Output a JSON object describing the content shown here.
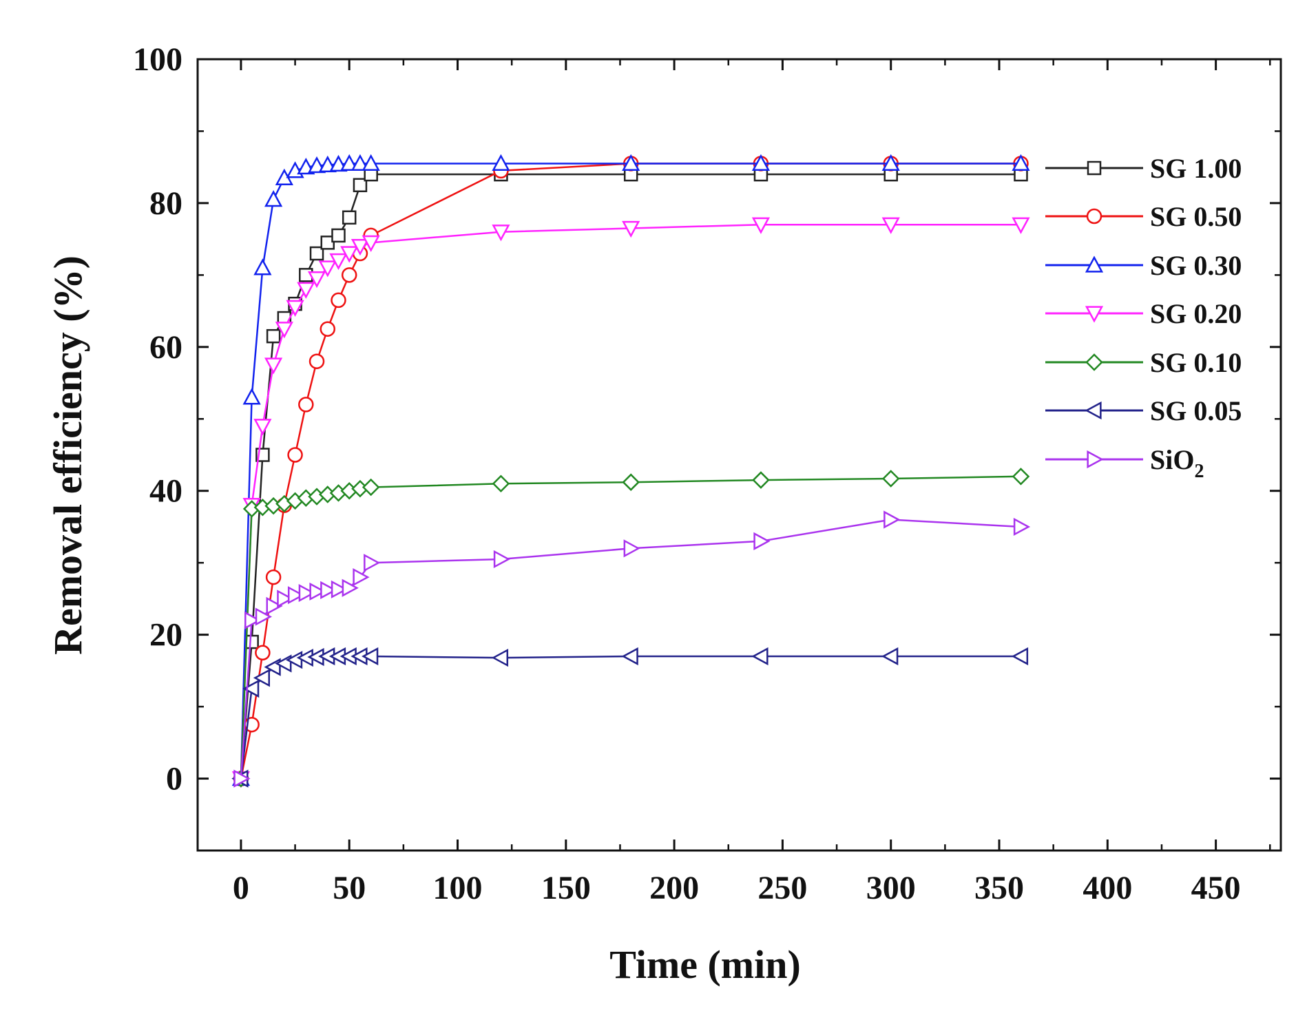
{
  "chart_data": {
    "type": "line",
    "title": "",
    "xlabel": "Time (min)",
    "ylabel": "Removal efficiency (%)",
    "xlim": [
      -20,
      480
    ],
    "ylim": [
      -10,
      100
    ],
    "xticks": [
      0,
      50,
      100,
      150,
      200,
      250,
      300,
      350,
      400,
      450
    ],
    "yticks": [
      0,
      20,
      40,
      60,
      80,
      100
    ],
    "legend_position": "top-right",
    "series": [
      {
        "name": "SG 1.00",
        "marker": "square",
        "color": "#222222",
        "x": [
          0,
          5,
          10,
          15,
          20,
          25,
          30,
          35,
          40,
          45,
          50,
          55,
          60,
          120,
          180,
          240,
          300,
          360
        ],
        "y": [
          0,
          19,
          45,
          61.5,
          64,
          66,
          70,
          73,
          74.5,
          75.5,
          78,
          82.5,
          84,
          84,
          84,
          84,
          84,
          84
        ]
      },
      {
        "name": "SG 0.50",
        "marker": "circle",
        "color": "#ee1111",
        "x": [
          0,
          5,
          10,
          15,
          20,
          25,
          30,
          35,
          40,
          45,
          50,
          55,
          60,
          120,
          180,
          240,
          300,
          360
        ],
        "y": [
          0,
          7.5,
          17.5,
          28,
          38,
          45,
          52,
          58,
          62.5,
          66.5,
          70,
          73,
          75.5,
          84.5,
          85.5,
          85.5,
          85.5,
          85.5
        ]
      },
      {
        "name": "SG 0.30",
        "marker": "triangle-up",
        "color": "#1122ee",
        "x": [
          0,
          5,
          10,
          15,
          20,
          25,
          30,
          35,
          40,
          45,
          50,
          55,
          60,
          120,
          180,
          240,
          300,
          360
        ],
        "y": [
          0,
          53,
          71,
          80.5,
          83.5,
          84.5,
          85,
          85.2,
          85.3,
          85.4,
          85.5,
          85.5,
          85.5,
          85.5,
          85.5,
          85.5,
          85.5,
          85.5
        ]
      },
      {
        "name": "SG 0.20",
        "marker": "triangle-down",
        "color": "#ff22ff",
        "x": [
          0,
          5,
          10,
          15,
          20,
          25,
          30,
          35,
          40,
          45,
          50,
          55,
          60,
          120,
          180,
          240,
          300,
          360
        ],
        "y": [
          0,
          38,
          49,
          57.5,
          62.5,
          65.5,
          68,
          69.5,
          71,
          72,
          73,
          74,
          74.5,
          76,
          76.5,
          77,
          77,
          77
        ]
      },
      {
        "name": "SG 0.10",
        "marker": "diamond",
        "color": "#228822",
        "x": [
          0,
          5,
          10,
          15,
          20,
          25,
          30,
          35,
          40,
          45,
          50,
          55,
          60,
          120,
          180,
          240,
          300,
          360
        ],
        "y": [
          0,
          37.5,
          37.7,
          37.9,
          38.2,
          38.6,
          39,
          39.2,
          39.5,
          39.7,
          40,
          40.3,
          40.5,
          41,
          41.2,
          41.5,
          41.7,
          42
        ]
      },
      {
        "name": "SG 0.05",
        "marker": "triangle-left",
        "color": "#22228a",
        "x": [
          0,
          5,
          10,
          15,
          20,
          25,
          30,
          35,
          40,
          45,
          50,
          55,
          60,
          120,
          180,
          240,
          300,
          360
        ],
        "y": [
          0,
          12.5,
          14,
          15.5,
          16,
          16.5,
          16.8,
          16.9,
          17,
          17,
          17,
          17,
          17,
          16.8,
          17,
          17,
          17,
          17
        ]
      },
      {
        "name": "SiO2",
        "marker": "triangle-right",
        "color": "#aa33ee",
        "x": [
          0,
          5,
          10,
          15,
          20,
          25,
          30,
          35,
          40,
          45,
          50,
          55,
          60,
          120,
          180,
          240,
          300,
          360
        ],
        "y": [
          0,
          22,
          22.5,
          24,
          25,
          25.5,
          25.8,
          26,
          26.2,
          26.3,
          26.5,
          28,
          30,
          30.5,
          32,
          33,
          36,
          35
        ]
      }
    ],
    "legend": [
      {
        "label": "SG 1.00"
      },
      {
        "label": "SG 0.50"
      },
      {
        "label": "SG 0.30"
      },
      {
        "label": "SG 0.20"
      },
      {
        "label": "SG 0.10"
      },
      {
        "label": "SG 0.05"
      },
      {
        "label_main": "SiO",
        "label_sub": "2"
      }
    ]
  }
}
